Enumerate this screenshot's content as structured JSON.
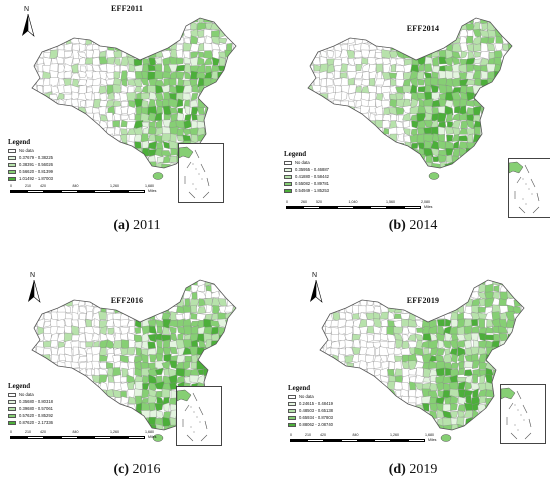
{
  "panels": [
    {
      "map_title": "EFF2011",
      "legend_title": "Legend",
      "legend_items": [
        {
          "label": "No data",
          "color": "#ffffff"
        },
        {
          "label": "0.37679 - 0.38225",
          "color": "#e3f4df"
        },
        {
          "label": "0.38391 - 0.56026",
          "color": "#b7e2ab"
        },
        {
          "label": "0.56620 - 0.81399",
          "color": "#86cf74"
        },
        {
          "label": "1.01492 - 1.87003",
          "color": "#4caf3a"
        }
      ],
      "scale_ticks": [
        "0",
        "210",
        "420",
        "840",
        "1,260",
        "1,680"
      ],
      "scale_unit": "Miles",
      "caption_letter": "(a)",
      "caption_year": "2011"
    },
    {
      "map_title": "EFF2014",
      "legend_title": "Legend",
      "legend_items": [
        {
          "label": "No data",
          "color": "#ffffff"
        },
        {
          "label": "0.35955 - 0.46887",
          "color": "#e3f4df"
        },
        {
          "label": "0.41880 - 0.58442",
          "color": "#b7e2ab"
        },
        {
          "label": "0.55082 - 0.89781",
          "color": "#86cf74"
        },
        {
          "label": "0.54949 - 1.85253",
          "color": "#4caf3a"
        }
      ],
      "scale_ticks": [
        "0",
        "260",
        "520",
        "1,040",
        "1,560",
        "2,080"
      ],
      "scale_unit": "Miles",
      "caption_letter": "(b)",
      "caption_year": "2014"
    },
    {
      "map_title": "EFF2016",
      "legend_title": "Legend",
      "legend_items": [
        {
          "label": "No data",
          "color": "#ffffff"
        },
        {
          "label": "0.35680 - 0.80318",
          "color": "#e3f4df"
        },
        {
          "label": "0.39680 - 0.57061",
          "color": "#b7e2ab"
        },
        {
          "label": "0.57620 - 0.85292",
          "color": "#86cf74"
        },
        {
          "label": "0.87620 - 2.17336",
          "color": "#4caf3a"
        }
      ],
      "scale_ticks": [
        "0",
        "210",
        "420",
        "840",
        "1,260",
        "1,680"
      ],
      "scale_unit": "Miles",
      "caption_letter": "(c)",
      "caption_year": "2016"
    },
    {
      "map_title": "EFF2019",
      "legend_title": "Legend",
      "legend_items": [
        {
          "label": "No data",
          "color": "#ffffff"
        },
        {
          "label": "0.24615 - 0.48419",
          "color": "#e3f4df"
        },
        {
          "label": "0.48503 - 0.65138",
          "color": "#b7e2ab"
        },
        {
          "label": "0.65934 - 0.87803",
          "color": "#86cf74"
        },
        {
          "label": "0.88062 - 2.08740",
          "color": "#4caf3a"
        }
      ],
      "scale_ticks": [
        "0",
        "210",
        "420",
        "840",
        "1,260",
        "1,680"
      ],
      "scale_unit": "Miles",
      "caption_letter": "(d)",
      "caption_year": "2019"
    }
  ],
  "north_letter": "N",
  "colors": {
    "outline": "#8a8a8a",
    "no_data": "#ffffff",
    "light": "#e3f4df",
    "mid_light": "#b7e2ab",
    "mid": "#86cf74",
    "dark": "#4caf3a"
  }
}
